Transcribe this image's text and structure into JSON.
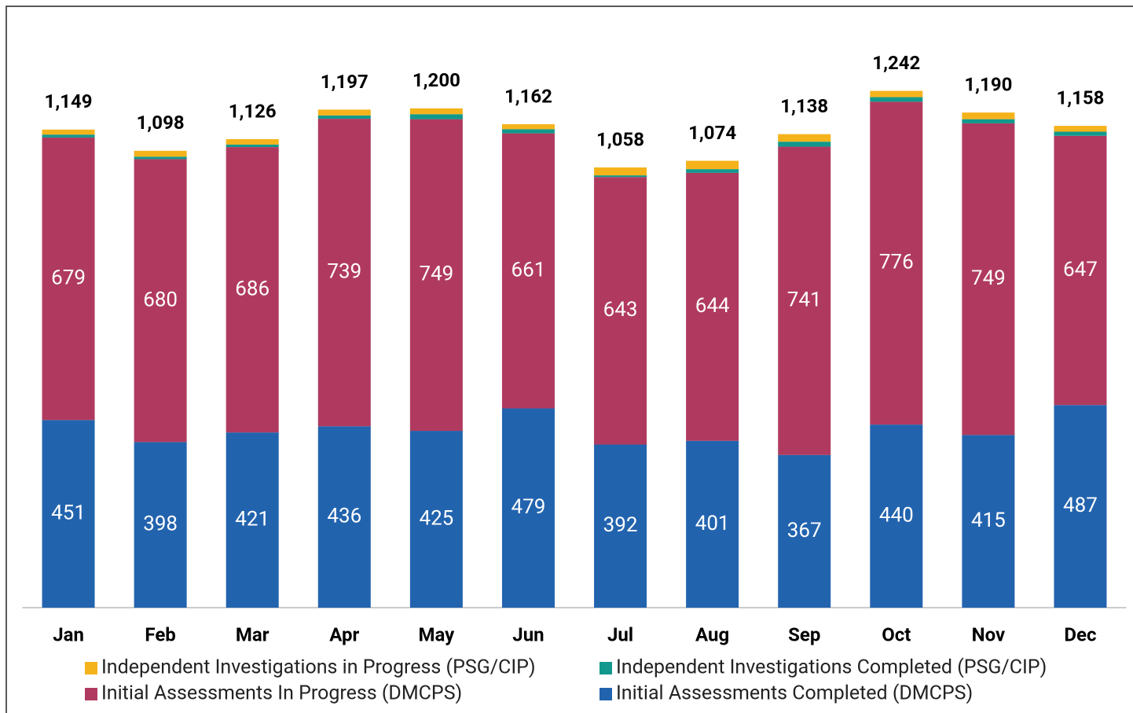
{
  "chart_data": {
    "type": "stacked_bar",
    "categories": [
      "Jan",
      "Feb",
      "Mar",
      "Apr",
      "May",
      "Jun",
      "Jul",
      "Aug",
      "Sep",
      "Oct",
      "Nov",
      "Dec"
    ],
    "series": [
      {
        "name": "Initial Assessments Completed (DMCPS)",
        "color": "#2263ae",
        "values": [
          451,
          398,
          421,
          436,
          425,
          479,
          392,
          401,
          367,
          440,
          415,
          487
        ],
        "labels_shown": true
      },
      {
        "name": "Initial Assessments In Progress (DMCPS)",
        "color": "#b03a5f",
        "values": [
          679,
          680,
          686,
          739,
          749,
          661,
          643,
          644,
          741,
          776,
          749,
          647
        ],
        "labels_shown": true
      },
      {
        "name": "Independent Investigations Completed (PSG/CIP)",
        "color": "#12988c",
        "values": [
          7,
          6,
          6,
          8,
          12,
          10,
          4,
          9,
          12,
          11,
          10,
          10
        ],
        "labels_shown": false
      },
      {
        "name": "Independent Investigations in Progress (PSG/CIP)",
        "color": "#f5b31b",
        "values": [
          12,
          14,
          13,
          14,
          14,
          12,
          19,
          20,
          18,
          15,
          16,
          14
        ],
        "labels_shown": false
      }
    ],
    "totals": [
      1149,
      1098,
      1126,
      1197,
      1200,
      1162,
      1058,
      1074,
      1138,
      1242,
      1190,
      1158
    ],
    "total_labels": [
      "1,149",
      "1,098",
      "1,126",
      "1,197",
      "1,200",
      "1,162",
      "1,058",
      "1,074",
      "1,138",
      "1,242",
      "1,190",
      "1,158"
    ],
    "ylim": [
      0,
      1400
    ]
  }
}
